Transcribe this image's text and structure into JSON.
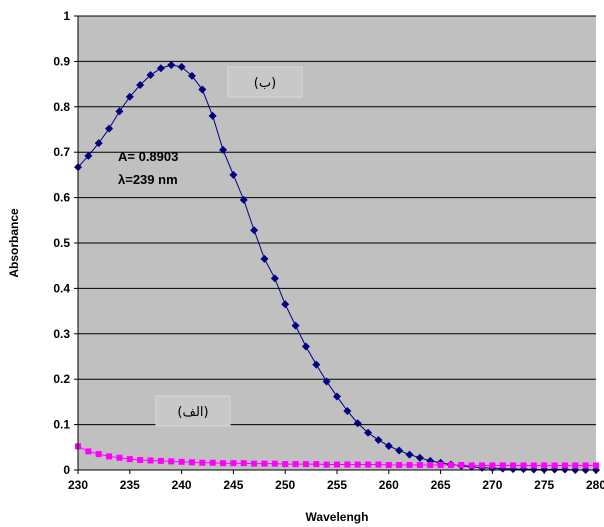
{
  "chart_data": {
    "type": "scatter",
    "xlabel": "Wavelengh",
    "ylabel": "Absorbance",
    "xlim": [
      230,
      280
    ],
    "ylim": [
      0,
      1
    ],
    "x_ticks": [
      "230",
      "235",
      "240",
      "245",
      "250",
      "255",
      "260",
      "265",
      "270",
      "275",
      "280"
    ],
    "y_ticks": [
      "0",
      "0.1",
      "0.2",
      "0.3",
      "0.4",
      "0.5",
      "0.6",
      "0.7",
      "0.8",
      "0.9",
      "1"
    ],
    "grid": "horizontal",
    "plot_background": "#c0c0c0",
    "series": [
      {
        "name": "(ب)",
        "color": "#000080",
        "marker": "diamond",
        "x": [
          230,
          231,
          232,
          233,
          234,
          235,
          236,
          237,
          238,
          239,
          240,
          241,
          242,
          243,
          244,
          245,
          246,
          247,
          248,
          249,
          250,
          251,
          252,
          253,
          254,
          255,
          256,
          257,
          258,
          259,
          260,
          261,
          262,
          263,
          264,
          265,
          266,
          267,
          268,
          269,
          270,
          271,
          272,
          273,
          274,
          275,
          276,
          277,
          278,
          279,
          280
        ],
        "y": [
          0.667,
          0.692,
          0.72,
          0.752,
          0.79,
          0.822,
          0.848,
          0.87,
          0.885,
          0.892,
          0.888,
          0.868,
          0.838,
          0.78,
          0.705,
          0.65,
          0.595,
          0.528,
          0.465,
          0.422,
          0.365,
          0.318,
          0.272,
          0.232,
          0.195,
          0.162,
          0.13,
          0.103,
          0.082,
          0.066,
          0.053,
          0.043,
          0.034,
          0.027,
          0.02,
          0.016,
          0.012,
          0.009,
          0.007,
          0.005,
          0.004,
          0.003,
          0.002,
          0.002,
          0.001,
          0.001,
          0.001,
          0.001,
          0.0,
          0.0,
          0.0
        ]
      },
      {
        "name": "(الف)",
        "color": "#ff00ff",
        "marker": "square",
        "x": [
          230,
          231,
          232,
          233,
          234,
          235,
          236,
          237,
          238,
          239,
          240,
          241,
          242,
          243,
          244,
          245,
          246,
          247,
          248,
          249,
          250,
          251,
          252,
          253,
          254,
          255,
          256,
          257,
          258,
          259,
          260,
          261,
          262,
          263,
          264,
          265,
          266,
          267,
          268,
          269,
          270,
          271,
          272,
          273,
          274,
          275,
          276,
          277,
          278,
          279,
          280
        ],
        "y": [
          0.052,
          0.041,
          0.035,
          0.03,
          0.027,
          0.024,
          0.022,
          0.021,
          0.02,
          0.019,
          0.018,
          0.017,
          0.016,
          0.016,
          0.015,
          0.015,
          0.015,
          0.014,
          0.014,
          0.014,
          0.013,
          0.013,
          0.013,
          0.013,
          0.012,
          0.012,
          0.012,
          0.012,
          0.012,
          0.012,
          0.011,
          0.011,
          0.011,
          0.011,
          0.011,
          0.011,
          0.011,
          0.011,
          0.01,
          0.01,
          0.01,
          0.01,
          0.01,
          0.01,
          0.01,
          0.01,
          0.01,
          0.01,
          0.01,
          0.01,
          0.01
        ]
      }
    ],
    "annotations": {
      "peak_line1": "A= 0.8903",
      "peak_line2": "λ=239 nm",
      "label_b": "(ب)",
      "label_alef": "(الف)"
    }
  }
}
